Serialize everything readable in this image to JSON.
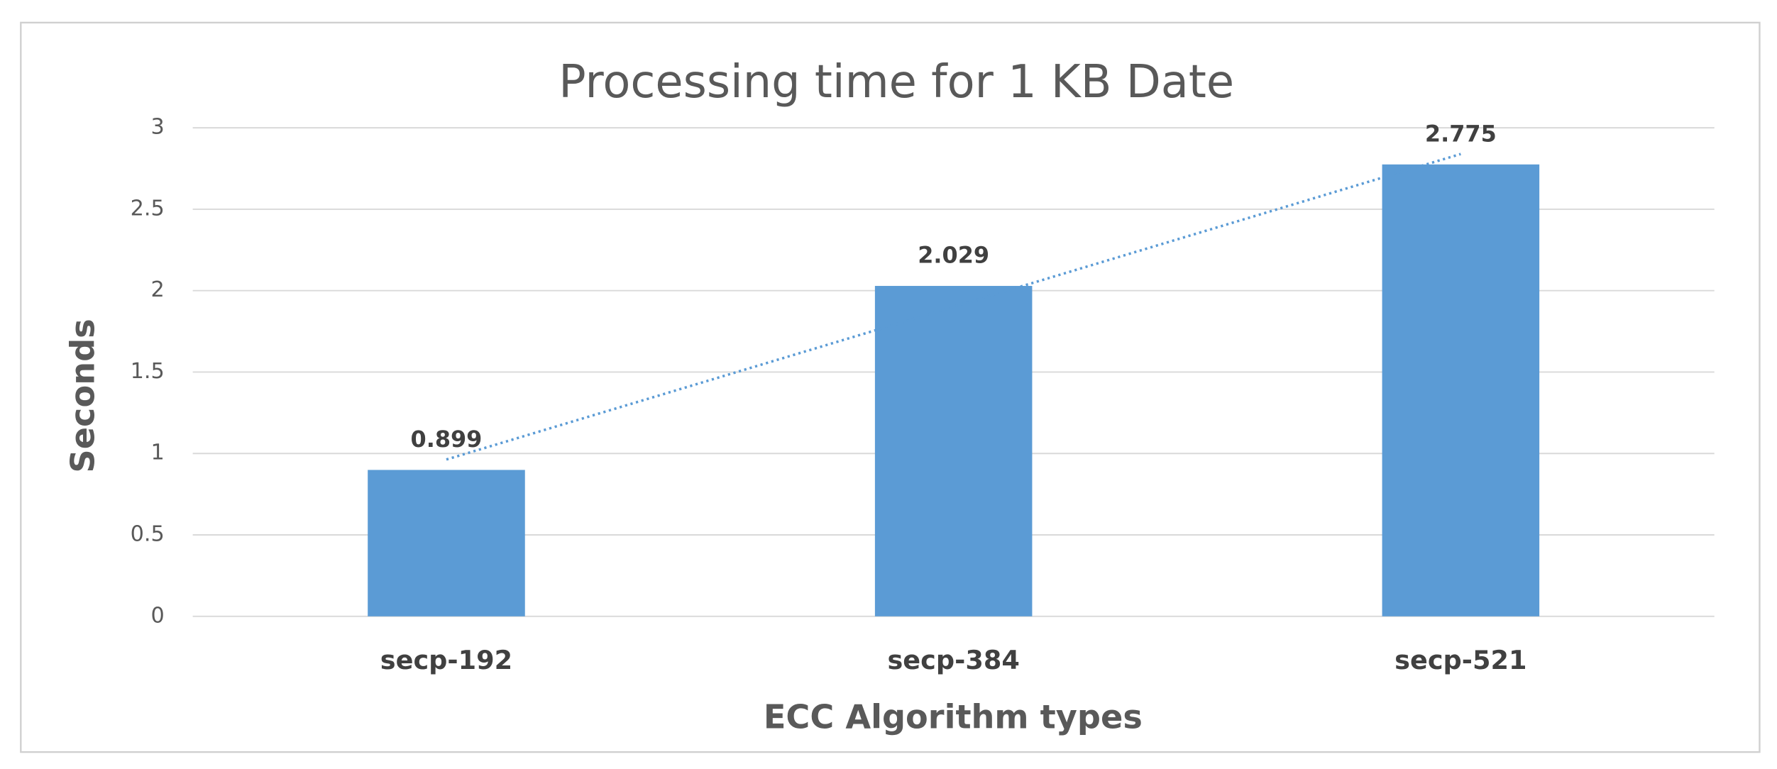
{
  "chart_data": {
    "type": "bar",
    "title": "Processing time for 1 KB Date",
    "x_label": "ECC Algorithm types",
    "y_label": "Seconds",
    "categories": [
      "secp-192",
      "secp-384",
      "secp-521"
    ],
    "values": [
      0.899,
      2.029,
      2.775
    ],
    "color": "#5b9bd5",
    "ylim": [
      0,
      3
    ],
    "yticks": [
      0,
      0.5,
      1,
      1.5,
      2,
      2.5,
      3
    ],
    "grid": true,
    "data_labels": true,
    "trendline": "linear"
  }
}
